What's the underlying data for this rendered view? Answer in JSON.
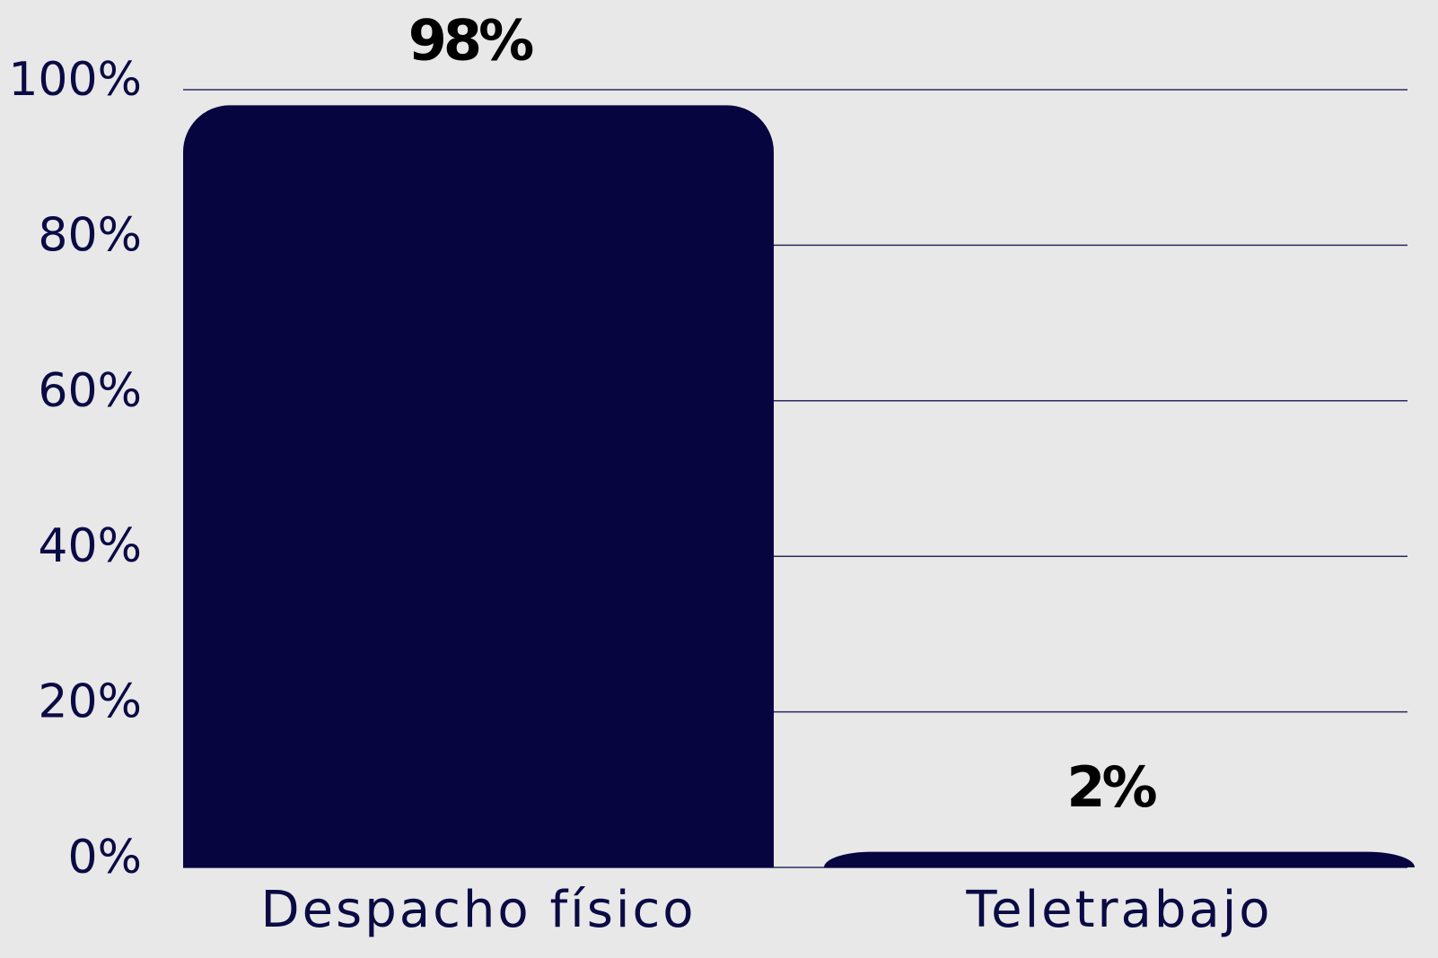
{
  "chart_data": {
    "type": "bar",
    "categories": [
      "Despacho físico",
      "Teletrabajo"
    ],
    "values": [
      98,
      2
    ],
    "value_labels": [
      "98%",
      "2%"
    ],
    "color": "#070540",
    "ylim": [
      0,
      100
    ],
    "yticks": [
      {
        "value": 0,
        "label": "0%"
      },
      {
        "value": 20,
        "label": "20%"
      },
      {
        "value": 40,
        "label": "40%"
      },
      {
        "value": 60,
        "label": "60%"
      },
      {
        "value": 80,
        "label": "80%"
      },
      {
        "value": 100,
        "label": "100%"
      }
    ],
    "grid": true
  }
}
